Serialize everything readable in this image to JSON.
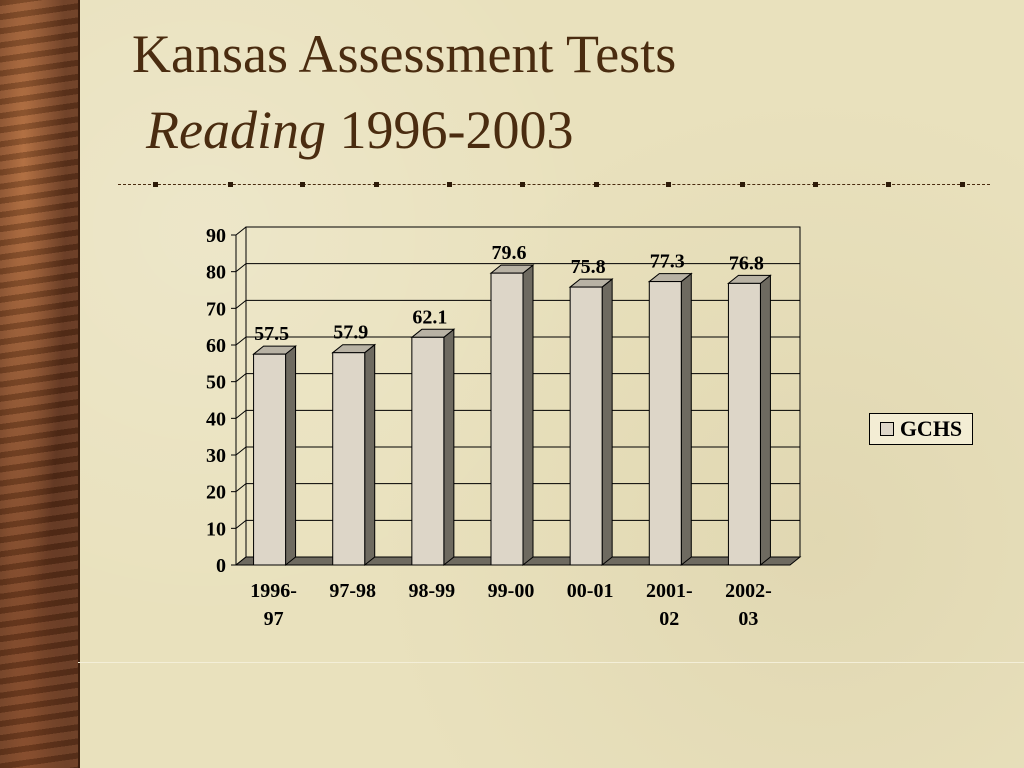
{
  "slide": {
    "title": "Kansas Assessment Tests",
    "subtitle_italic": "Reading",
    "subtitle_rest": " 1996-2003"
  },
  "colors": {
    "title": "#4a2c10",
    "bar_front": "#ddd6c8",
    "bar_side": "#6e6a60",
    "bar_top": "#b8b2a4"
  },
  "chart_data": {
    "type": "bar",
    "categories": [
      "1996-\n97",
      "97-98",
      "98-99",
      "99-00",
      "00-01",
      "2001-\n02",
      "2002-\n03"
    ],
    "series": [
      {
        "name": "GCHS",
        "values": [
          57.5,
          57.9,
          62.1,
          79.6,
          75.8,
          77.3,
          76.8
        ]
      }
    ],
    "data_labels": [
      "57.5",
      "57.9",
      "62.1",
      "79.6",
      "75.8",
      "77.3",
      "76.8"
    ],
    "ylim": [
      0,
      90
    ],
    "yticks": [
      0,
      10,
      20,
      30,
      40,
      50,
      60,
      70,
      80,
      90
    ],
    "grid": true,
    "legend_position": "right",
    "style": "3d-bar"
  }
}
